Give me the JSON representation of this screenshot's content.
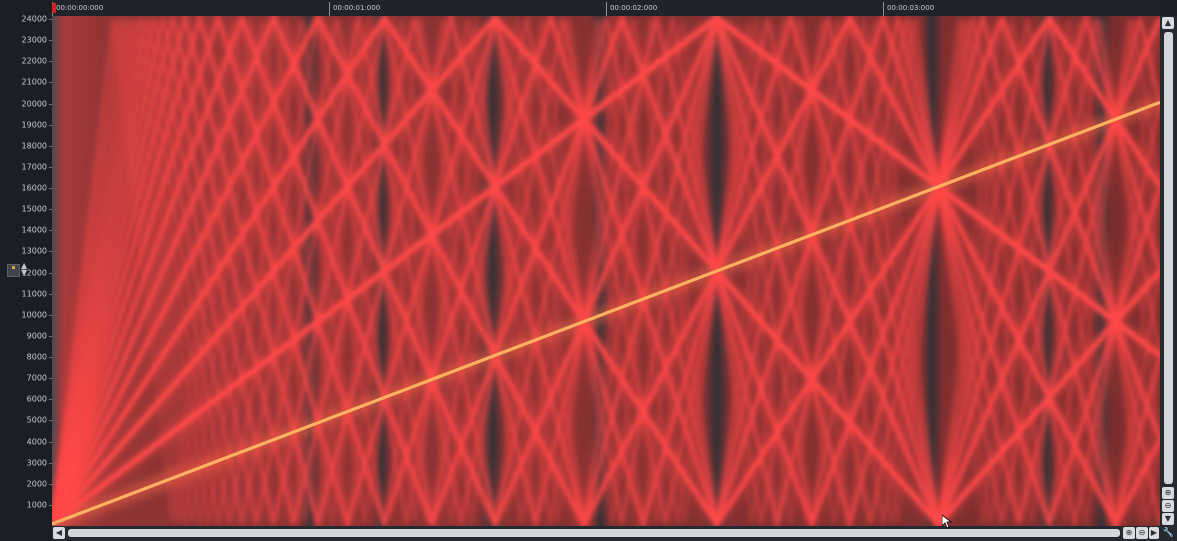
{
  "timeline": {
    "labels": [
      "00:00:00:000",
      "00:00:01:000",
      "00:00:02:000",
      "00:00:03:000"
    ]
  },
  "frequency_axis": {
    "labels": [
      "24000",
      "23000",
      "22000",
      "21000",
      "20000",
      "19000",
      "18000",
      "17000",
      "16000",
      "15000",
      "14000",
      "13000",
      "12000",
      "11000",
      "10000",
      "9000",
      "8000",
      "7000",
      "6000",
      "5000",
      "4000",
      "3000",
      "2000",
      "1000"
    ]
  },
  "icons": {
    "axis_zoom": "axis-zoom-icon",
    "zoom_in": "zoom-in-icon",
    "zoom_out": "zoom-out-icon",
    "scroll_up": "arrow-up-icon",
    "scroll_down": "arrow-down-icon",
    "scroll_left": "arrow-left-icon",
    "scroll_right": "arrow-right-icon",
    "tool": "wrench-icon",
    "cursor": "mouse-pointer-icon"
  },
  "colors": {
    "background": "#1b1e24",
    "spectrogram_base": "#101114",
    "harmonic": "#ff4848",
    "fundamental": "#ffb060",
    "playhead": "#d42222"
  }
}
